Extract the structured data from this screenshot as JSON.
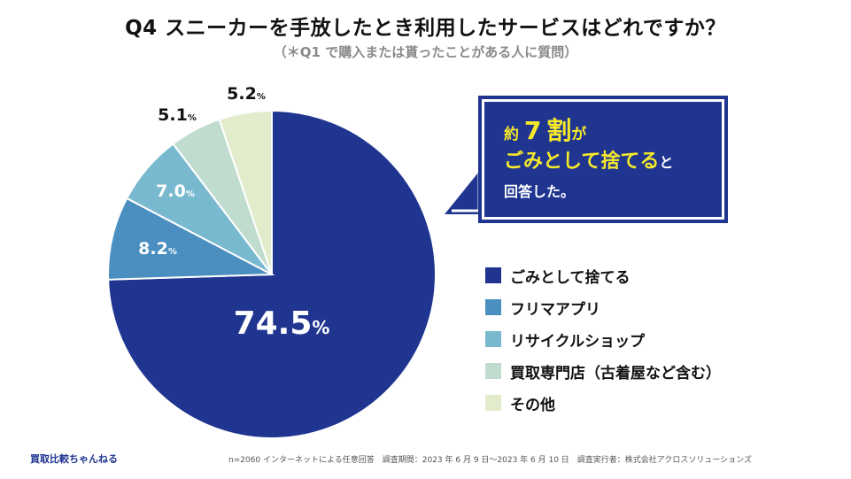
{
  "header": {
    "title": "Q4 スニーカーを手放したとき利用したサービスはどれですか？",
    "subtitle": "（＊Q1 で購入または貰ったことがある人に質問）"
  },
  "chart_data": {
    "type": "pie",
    "start": "12 o'clock, clockwise",
    "categories": [
      "ごみとして捨てる",
      "フリマアプリ",
      "リサイクルショップ",
      "買取専門店（古着屋など含む）",
      "その他"
    ],
    "values": [
      74.5,
      8.2,
      7.0,
      5.1,
      5.2
    ],
    "labels": [
      {
        "num": "74.5",
        "unit": "%"
      },
      {
        "num": "8.2",
        "unit": "%"
      },
      {
        "num": "7.0",
        "unit": "%"
      },
      {
        "num": "5.1",
        "unit": "%"
      },
      {
        "num": "5.2",
        "unit": "%"
      }
    ],
    "colors": [
      "#1f3590",
      "#4a8fbf",
      "#79b9d0",
      "#c0dccf",
      "#e2eccd"
    ],
    "label_colors": [
      "#ffffff",
      "#ffffff",
      "#ffffff",
      "#111111",
      "#111111"
    ],
    "legend_position": "right"
  },
  "callout": {
    "pre": "約",
    "number": "7",
    "unit": "割",
    "particle": "が",
    "highlight": "ごみとして捨てる",
    "particle2": "と",
    "tail": "回答した。"
  },
  "legend": [
    {
      "label": "ごみとして捨てる",
      "color": "#1f3590"
    },
    {
      "label": "フリマアプリ",
      "color": "#4a8fbf"
    },
    {
      "label": "リサイクルショップ",
      "color": "#79b9d0"
    },
    {
      "label": "買取専門店（古着屋など含む）",
      "color": "#c0dccf"
    },
    {
      "label": "その他",
      "color": "#e2eccd"
    }
  ],
  "footer": {
    "brand": "買取比較ちゃんねる",
    "note": "n=2060 インターネットによる任意回答　調査期間：2023 年 6 月 9 日〜2023 年 6 月 10 日　調査実行者：株式会社アクロスソリューションズ"
  }
}
